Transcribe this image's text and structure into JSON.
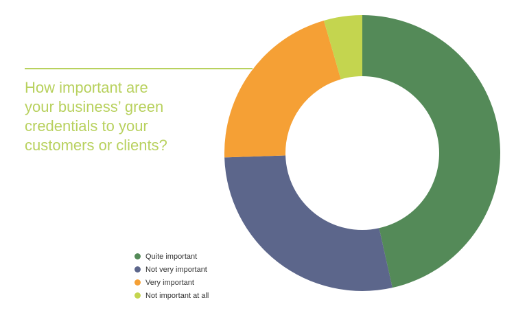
{
  "chart_data": {
    "type": "pie",
    "title_lines": [
      "How important are",
      "your business’ green",
      "credentials to your",
      "customers or clients?"
    ],
    "series": [
      {
        "name": "Quite important",
        "value": 46.5,
        "color": "#548a58"
      },
      {
        "name": "Not very important",
        "value": 28,
        "color": "#5c668b"
      },
      {
        "name": "Very important",
        "value": 21,
        "color": "#f5a035"
      },
      {
        "name": "Not important at all",
        "value": 4.5,
        "color": "#c4d54f"
      }
    ],
    "accent_color": "#b8d15e",
    "legend_position": "bottom-left"
  }
}
